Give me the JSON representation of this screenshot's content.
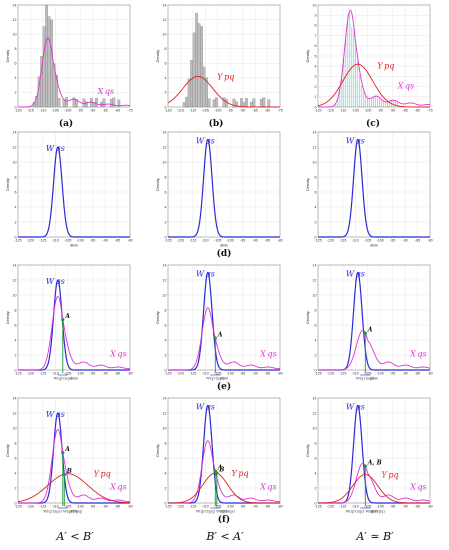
{
  "figure": {
    "labels": {
      "a": "(a)",
      "b": "(b)",
      "c": "(c)",
      "d": "(d)",
      "e": "(e)",
      "f": "(f)"
    },
    "relations": [
      "A′ < B′",
      "B′ < A′",
      "A′ ≃ B′"
    ],
    "colors": {
      "hist": "#bdbdbd",
      "w": "#2b2bd6",
      "xqs": "#e033d0",
      "ypq": "#e02020",
      "marker": "#1a9a3a",
      "grid": "#dcdcdc"
    }
  },
  "chart_data": [
    {
      "id": "a",
      "type": "histogram",
      "ylabel": "Density",
      "xlabel": "",
      "xticks": [
        -120,
        -115,
        -110,
        -105,
        -100,
        -95,
        -90,
        -85,
        -80,
        -75
      ],
      "ymax": 14,
      "hist_center": -108,
      "hist_peak": 13,
      "series": [
        {
          "name": "X qs",
          "shape": "peak",
          "mu": -108,
          "sigma": 2.3,
          "peak": 9.5,
          "tail": true
        }
      ]
    },
    {
      "id": "b",
      "type": "histogram",
      "ylabel": "Density",
      "xlabel": "",
      "xticks": [
        -120,
        -115,
        -110,
        -105,
        -100,
        -95,
        -90,
        -85,
        -80,
        -75
      ],
      "ymax": 14,
      "hist_center": -108,
      "hist_peak": 12,
      "series": [
        {
          "name": "Y pq",
          "shape": "normal",
          "mu": -108,
          "sigma": 6,
          "peak": 4.2
        }
      ]
    },
    {
      "id": "c",
      "type": "histogram",
      "ylabel": "Density",
      "xlabel": "",
      "xticks": [
        -120,
        -115,
        -110,
        -105,
        -100,
        -95,
        -90,
        -85,
        -80,
        -75
      ],
      "ymax": 10,
      "hist_center": null,
      "series": [
        {
          "name": "X qs",
          "shape": "peak",
          "mu": -107,
          "sigma": 2.3,
          "peak": 9.5,
          "tail": true
        },
        {
          "name": "Y pq",
          "shape": "normal",
          "mu": -104,
          "sigma": 6,
          "peak": 4.2
        }
      ]
    },
    {
      "id": "d1",
      "type": "line",
      "ylabel": "Density",
      "xlabel": "dBm",
      "xticks": [
        -125,
        -120,
        -115,
        -110,
        -105,
        -100,
        -95,
        -90,
        -85,
        -80
      ],
      "ymax": 14,
      "series": [
        {
          "name": "W qs",
          "shape": "normal",
          "mu": -109,
          "sigma": 1.7,
          "peak": 12
        }
      ]
    },
    {
      "id": "d2",
      "type": "line",
      "ylabel": "Density",
      "xlabel": "dBm",
      "xticks": [
        -125,
        -120,
        -115,
        -110,
        -105,
        -100,
        -95,
        -90,
        -85,
        -80
      ],
      "ymax": 14,
      "series": [
        {
          "name": "W qs",
          "shape": "normal",
          "mu": -109,
          "sigma": 1.7,
          "peak": 13
        }
      ]
    },
    {
      "id": "d3",
      "type": "line",
      "ylabel": "Density",
      "xlabel": "dBm",
      "xticks": [
        -125,
        -120,
        -115,
        -110,
        -105,
        -100,
        -95,
        -90,
        -85,
        -80
      ],
      "ymax": 14,
      "series": [
        {
          "name": "W qs",
          "shape": "normal",
          "mu": -109,
          "sigma": 1.7,
          "peak": 13
        }
      ]
    },
    {
      "id": "e1",
      "type": "line",
      "ylabel": "Density",
      "xlabel": "dBm",
      "xticks": [
        -125,
        -120,
        -115,
        -110,
        -105,
        -100,
        -95,
        -90,
        -85,
        -80
      ],
      "ymax": 14,
      "marker": {
        "x": -107,
        "label": "A",
        "sub": "W(q)′(xqs)"
      },
      "series": [
        {
          "name": "W qs",
          "shape": "normal",
          "mu": -109,
          "sigma": 1.7,
          "peak": 12
        },
        {
          "name": "X qs",
          "shape": "peak",
          "mu": -109,
          "sigma": 2.3,
          "peak": 9.8,
          "tail": true
        }
      ]
    },
    {
      "id": "e2",
      "type": "line",
      "ylabel": "Density",
      "xlabel": "dBm",
      "xticks": [
        -125,
        -120,
        -115,
        -110,
        -105,
        -100,
        -95,
        -90,
        -85,
        -80
      ],
      "ymax": 14,
      "marker": {
        "x": -106,
        "label": "A",
        "sub": "W(q)′(xqs)"
      },
      "series": [
        {
          "name": "W qs",
          "shape": "normal",
          "mu": -109,
          "sigma": 1.7,
          "peak": 13
        },
        {
          "name": "X qs",
          "shape": "peak",
          "mu": -109,
          "sigma": 2.3,
          "peak": 8.3,
          "tail": true
        }
      ]
    },
    {
      "id": "e3",
      "type": "line",
      "ylabel": "Density",
      "xlabel": "dBm",
      "xticks": [
        -125,
        -120,
        -115,
        -110,
        -105,
        -100,
        -95,
        -90,
        -85,
        -80
      ],
      "ymax": 14,
      "marker": {
        "x": -106,
        "label": "A",
        "sub": "W(q)′(xqs)"
      },
      "series": [
        {
          "name": "W qs",
          "shape": "normal",
          "mu": -109,
          "sigma": 1.7,
          "peak": 13
        },
        {
          "name": "X qs",
          "shape": "peak",
          "mu": -107,
          "sigma": 2.6,
          "peak": 5.3,
          "tail": true
        }
      ]
    },
    {
      "id": "f1",
      "type": "line",
      "ylabel": "Density",
      "xlabel": "dBm",
      "xticks": [
        -125,
        -120,
        -115,
        -110,
        -105,
        -100,
        -95,
        -90,
        -85,
        -80
      ],
      "ymax": 14,
      "markers": [
        {
          "x": -107,
          "label": "A"
        },
        {
          "x": -107,
          "label": "B"
        }
      ],
      "sub": "W(q)′(xqs)  W(q)′(Ypq)",
      "series": [
        {
          "name": "W qs",
          "shape": "normal",
          "mu": -109,
          "sigma": 1.7,
          "peak": 12
        },
        {
          "name": "X qs",
          "shape": "peak",
          "mu": -109,
          "sigma": 2.3,
          "peak": 9.8,
          "tail": true
        },
        {
          "name": "Y pq",
          "shape": "normal",
          "mu": -105,
          "sigma": 8,
          "peak": 3.9
        }
      ]
    },
    {
      "id": "f2",
      "type": "line",
      "ylabel": "Density",
      "xlabel": "dBm",
      "xticks": [
        -125,
        -120,
        -115,
        -110,
        -105,
        -100,
        -95,
        -90,
        -85,
        -80
      ],
      "ymax": 14,
      "markers": [
        {
          "x": -106,
          "label": "B"
        },
        {
          "x": -106,
          "label": "A"
        }
      ],
      "sub": "W(q)′(Ypq)  W(q)′(xqs)",
      "series": [
        {
          "name": "W qs",
          "shape": "normal",
          "mu": -109,
          "sigma": 1.7,
          "peak": 13
        },
        {
          "name": "X qs",
          "shape": "peak",
          "mu": -109,
          "sigma": 2.3,
          "peak": 8.3,
          "tail": true
        },
        {
          "name": "Y pq",
          "shape": "normal",
          "mu": -106,
          "sigma": 5,
          "peak": 4.0
        }
      ]
    },
    {
      "id": "f3",
      "type": "line",
      "ylabel": "Density",
      "xlabel": "dBm",
      "xticks": [
        -125,
        -120,
        -115,
        -110,
        -105,
        -100,
        -95,
        -90,
        -85,
        -80
      ],
      "ymax": 14,
      "markers": [
        {
          "x": -106,
          "label": "A, B"
        }
      ],
      "sub": "W(q)′(xqs) W(q)′(Ypq)",
      "series": [
        {
          "name": "W qs",
          "shape": "normal",
          "mu": -109,
          "sigma": 1.7,
          "peak": 13
        },
        {
          "name": "X qs",
          "shape": "peak",
          "mu": -107,
          "sigma": 2.6,
          "peak": 5.3,
          "tail": true
        },
        {
          "name": "Y pq",
          "shape": "normal",
          "mu": -106,
          "sigma": 5,
          "peak": 3.8
        }
      ]
    }
  ]
}
